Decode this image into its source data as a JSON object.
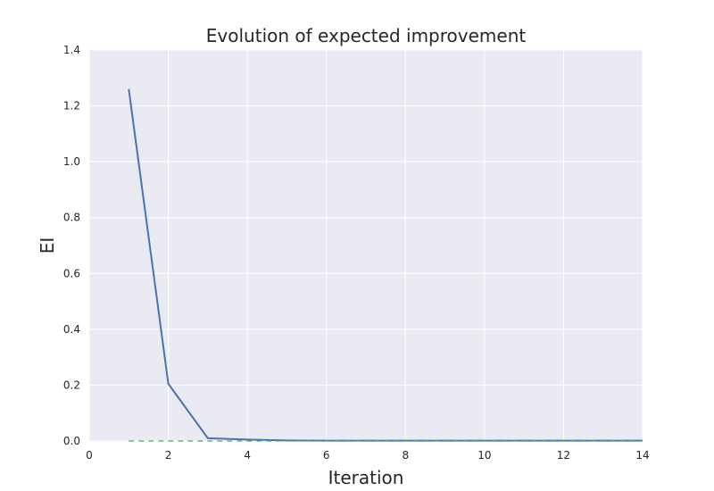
{
  "chart_data": {
    "type": "line",
    "title": "Evolution of expected improvement",
    "xlabel": "Iteration",
    "ylabel": "EI",
    "xlim": [
      0,
      14
    ],
    "ylim": [
      0,
      1.4
    ],
    "xticks": [
      0,
      2,
      4,
      6,
      8,
      10,
      12,
      14
    ],
    "yticks": [
      0.0,
      0.2,
      0.4,
      0.6,
      0.8,
      1.0,
      1.2,
      1.4
    ],
    "xtick_labels": [
      "0",
      "2",
      "4",
      "6",
      "8",
      "10",
      "12",
      "14"
    ],
    "ytick_labels": [
      "0.0",
      "0.2",
      "0.4",
      "0.6",
      "0.8",
      "1.0",
      "1.2",
      "1.4"
    ],
    "grid": true,
    "series": [
      {
        "style": "solid",
        "color": "#4c72b0",
        "x": [
          1,
          2,
          3,
          4,
          5,
          6,
          7,
          8,
          9,
          10,
          11,
          12,
          13,
          14
        ],
        "y": [
          1.26,
          0.205,
          0.01,
          0.005,
          0.002,
          0.001,
          0.001,
          0.001,
          0.001,
          0.001,
          0.001,
          0.001,
          0.001,
          0.001
        ]
      },
      {
        "style": "dashed",
        "color": "#55a868",
        "x": [
          1,
          14
        ],
        "y": [
          0.0,
          0.0
        ]
      }
    ],
    "plot_background": "#eaeaf2",
    "grid_color": "#ffffff"
  }
}
